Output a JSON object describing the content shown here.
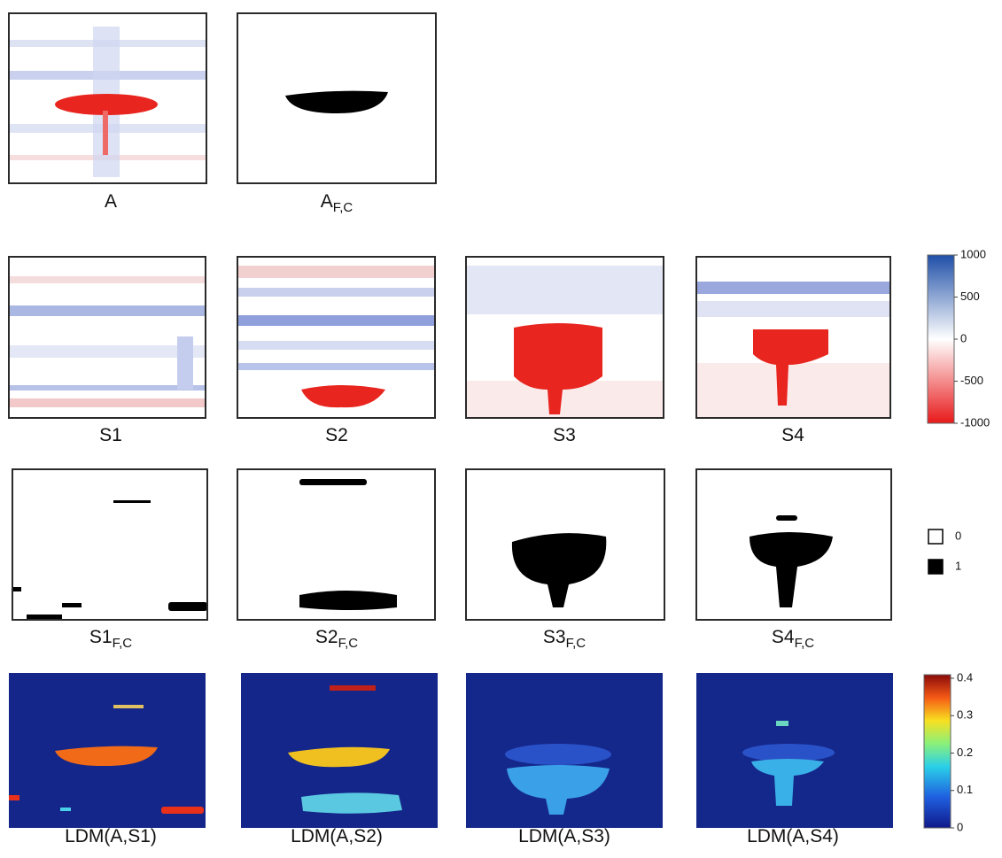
{
  "rows": [
    [
      {
        "main": "A"
      },
      {
        "main": "A",
        "sub": "F,C"
      }
    ],
    [
      {
        "main": "S1"
      },
      {
        "main": "S2"
      },
      {
        "main": "S3"
      },
      {
        "main": "S4"
      }
    ],
    [
      {
        "main": "S1",
        "sub": "F,C"
      },
      {
        "main": "S2",
        "sub": "F,C"
      },
      {
        "main": "S3",
        "sub": "F,C"
      },
      {
        "main": "S4",
        "sub": "F,C"
      }
    ],
    [
      {
        "main": "LDM(A,S1)"
      },
      {
        "main": "LDM(A,S2)"
      },
      {
        "main": "LDM(A,S3)"
      },
      {
        "main": "LDM(A,S4)"
      }
    ]
  ],
  "colorbar_difference": {
    "lim": [
      -1000,
      1000
    ],
    "ticks": [
      1000,
      500,
      0,
      -500,
      -1000
    ]
  },
  "binary_legend": {
    "entries": [
      0,
      1
    ]
  },
  "colorbar_ldm": {
    "lim": [
      0,
      0.4
    ],
    "ticks": [
      0.4,
      0.3,
      0.2,
      0.1,
      0
    ]
  }
}
